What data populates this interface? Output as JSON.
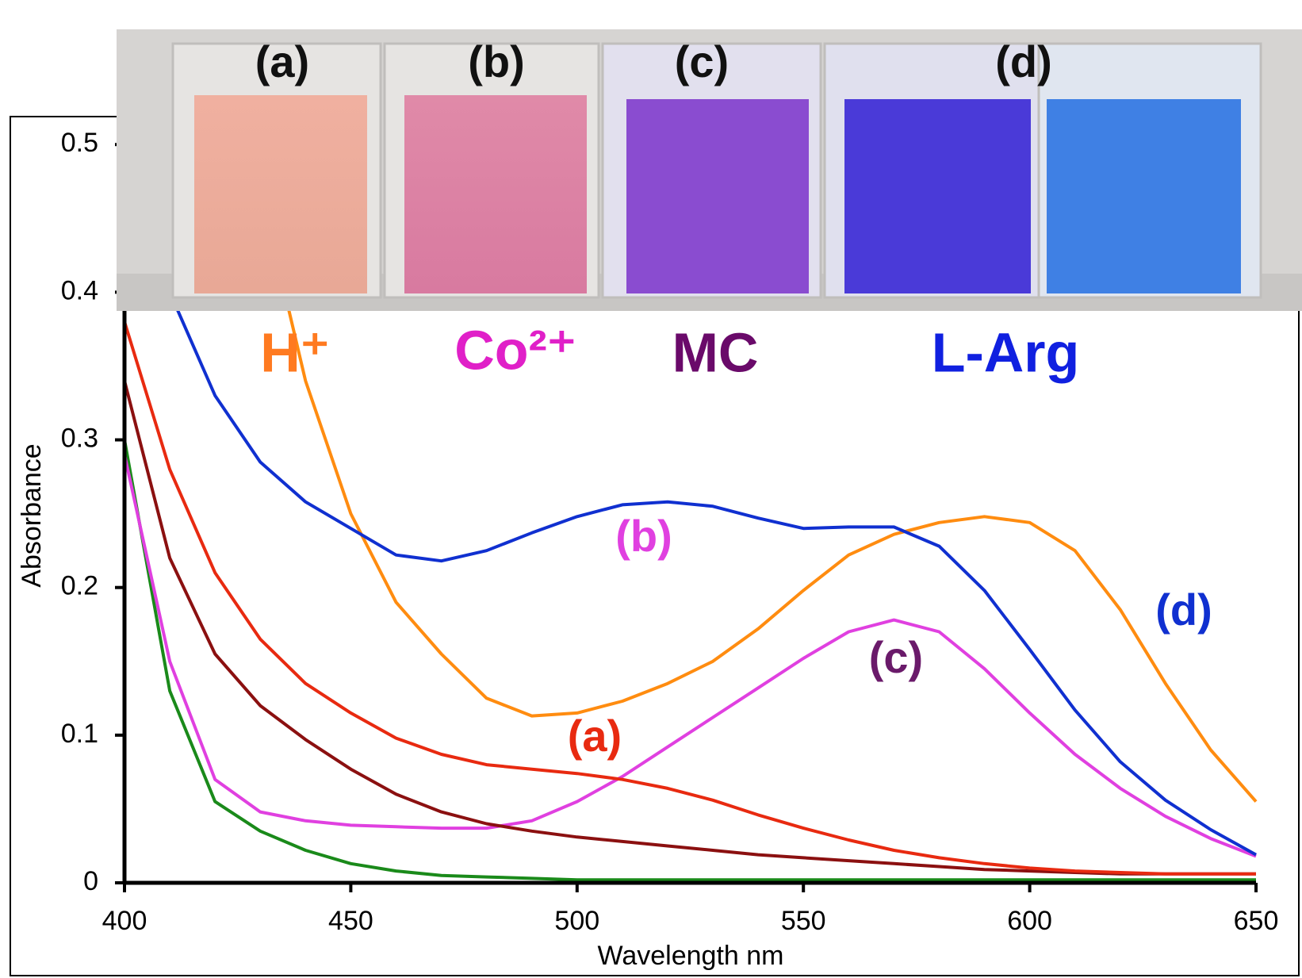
{
  "chart_data": {
    "type": "line",
    "x_label": "Wavelength nm",
    "y_label": "Absorbance",
    "x": [
      400,
      410,
      420,
      430,
      440,
      450,
      460,
      470,
      480,
      490,
      500,
      510,
      520,
      530,
      540,
      550,
      560,
      570,
      580,
      590,
      600,
      610,
      620,
      630,
      640,
      650
    ],
    "series": [
      {
        "color": "#1a8a1a",
        "values": [
          0.3,
          0.13,
          0.055,
          0.035,
          0.022,
          0.013,
          0.008,
          0.005,
          0.004,
          0.003,
          0.002,
          0.002,
          0.002,
          0.002,
          0.002,
          0.002,
          0.002,
          0.002,
          0.002,
          0.002,
          0.002,
          0.002,
          0.002,
          0.002,
          0.002,
          0.002
        ]
      },
      {
        "color": "#e040e0",
        "values": [
          0.29,
          0.15,
          0.07,
          0.048,
          0.042,
          0.039,
          0.038,
          0.037,
          0.037,
          0.042,
          0.055,
          0.072,
          0.092,
          0.112,
          0.132,
          0.152,
          0.17,
          0.178,
          0.17,
          0.145,
          0.115,
          0.087,
          0.064,
          0.045,
          0.03,
          0.018
        ]
      },
      {
        "color": "#8b1010",
        "values": [
          0.34,
          0.22,
          0.155,
          0.12,
          0.097,
          0.077,
          0.06,
          0.048,
          0.04,
          0.035,
          0.031,
          0.028,
          0.025,
          0.022,
          0.019,
          0.017,
          0.015,
          0.013,
          0.011,
          0.009,
          0.008,
          0.007,
          0.006,
          0.006,
          0.006,
          0.006
        ]
      },
      {
        "color": "#e82a10",
        "values": [
          0.38,
          0.28,
          0.21,
          0.165,
          0.135,
          0.115,
          0.098,
          0.087,
          0.08,
          0.077,
          0.074,
          0.07,
          0.064,
          0.056,
          0.046,
          0.037,
          0.029,
          0.022,
          0.017,
          0.013,
          0.01,
          0.008,
          0.007,
          0.006,
          0.006,
          0.006
        ]
      },
      {
        "color": "#ff8c10",
        "values": [
          null,
          null,
          null,
          0.47,
          0.34,
          0.25,
          0.19,
          0.155,
          0.125,
          0.113,
          0.115,
          0.123,
          0.135,
          0.15,
          0.172,
          0.198,
          0.222,
          0.236,
          0.244,
          0.248,
          0.244,
          0.225,
          0.185,
          0.135,
          0.09,
          0.055
        ]
      },
      {
        "color": "#1030d0",
        "values": [
          0.48,
          0.4,
          0.33,
          0.285,
          0.258,
          0.24,
          0.222,
          0.218,
          0.225,
          0.237,
          0.248,
          0.256,
          0.258,
          0.255,
          0.247,
          0.24,
          0.241,
          0.241,
          0.228,
          0.198,
          0.158,
          0.117,
          0.082,
          0.056,
          0.036,
          0.019
        ]
      }
    ],
    "xlim": [
      400,
      650
    ],
    "ylim": [
      0,
      0.52
    ],
    "xticks": [
      400,
      450,
      500,
      550,
      600,
      650
    ],
    "yticks": [
      0,
      0.1,
      0.2,
      0.3,
      0.4,
      0.5
    ],
    "annotations": [
      {
        "text": "(a)",
        "color": "#e82a10"
      },
      {
        "text": "(b)",
        "color": "#e040e0"
      },
      {
        "text": "(c)",
        "color": "#6a1a6a"
      },
      {
        "text": "(d)",
        "color": "#1030d0"
      },
      {
        "text": "H⁺",
        "color": "#ff7a20"
      },
      {
        "text": "Co²⁺",
        "color": "#e020c8"
      },
      {
        "text": "MC",
        "color": "#6a0a6a"
      },
      {
        "text": "L-Arg",
        "color": "#1020e0"
      }
    ],
    "photo_labels": [
      "(a)",
      "(b)",
      "(c)",
      "(d)"
    ]
  }
}
